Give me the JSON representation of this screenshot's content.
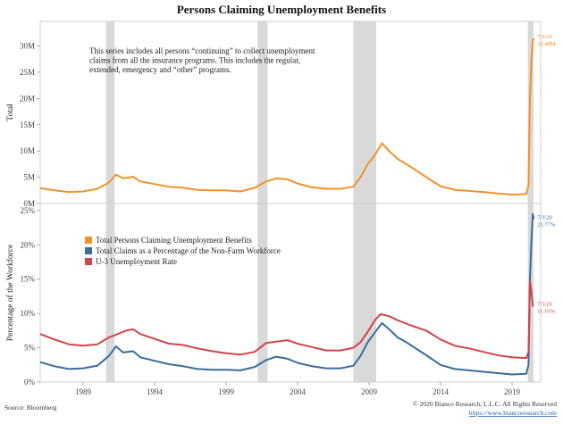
{
  "chart_data": {
    "type": "line",
    "title": "Persons Claiming Unemployment Benefits",
    "x_ticks": [
      "1989",
      "1994",
      "1999",
      "2004",
      "2009",
      "2014",
      "2019"
    ],
    "x_tick_years": [
      1989,
      1994,
      1999,
      2004,
      2009,
      2014,
      2019
    ],
    "xlim": [
      1986,
      2021
    ],
    "recessions": [
      [
        1990.6,
        1991.2
      ],
      [
        2001.2,
        2001.9
      ],
      [
        2007.9,
        2009.5
      ],
      [
        2020.1,
        2020.5
      ]
    ],
    "top_panel": {
      "ylabel": "Total",
      "y_ticks": [
        "0M",
        "5M",
        "10M",
        "15M",
        "20M",
        "25M",
        "30M"
      ],
      "y_tick_values": [
        0,
        5,
        10,
        15,
        20,
        25,
        30
      ],
      "ylim": [
        0,
        34
      ],
      "annotation": [
        "This series includes all persons “continuing” to collect unemployment",
        "claims from all the insurance programs.  This includes the regular,",
        "extended, emergency and “other” programs."
      ],
      "series": [
        {
          "name": "Total Persons Claiming Unemployment Benefits",
          "color": "#f0922a",
          "end_label": [
            "7/3/20",
            "31.48M"
          ],
          "points": [
            [
              1986.0,
              2.9
            ],
            [
              1987.0,
              2.5
            ],
            [
              1988.0,
              2.2
            ],
            [
              1989.0,
              2.3
            ],
            [
              1990.0,
              2.8
            ],
            [
              1990.8,
              4.0
            ],
            [
              1991.3,
              5.5
            ],
            [
              1991.8,
              4.8
            ],
            [
              1992.5,
              5.1
            ],
            [
              1993.0,
              4.2
            ],
            [
              1994.0,
              3.7
            ],
            [
              1995.0,
              3.2
            ],
            [
              1996.0,
              3.0
            ],
            [
              1997.0,
              2.6
            ],
            [
              1998.0,
              2.5
            ],
            [
              1999.0,
              2.5
            ],
            [
              2000.0,
              2.3
            ],
            [
              2001.0,
              3.0
            ],
            [
              2001.8,
              4.2
            ],
            [
              2002.5,
              4.8
            ],
            [
              2003.3,
              4.6
            ],
            [
              2004.0,
              3.8
            ],
            [
              2005.0,
              3.1
            ],
            [
              2006.0,
              2.8
            ],
            [
              2007.0,
              2.8
            ],
            [
              2007.9,
              3.2
            ],
            [
              2008.4,
              5.0
            ],
            [
              2008.9,
              7.5
            ],
            [
              2009.4,
              9.2
            ],
            [
              2009.9,
              11.5
            ],
            [
              2010.4,
              10.0
            ],
            [
              2011.0,
              8.5
            ],
            [
              2011.6,
              7.5
            ],
            [
              2012.2,
              6.5
            ],
            [
              2013.0,
              5.0
            ],
            [
              2014.0,
              3.3
            ],
            [
              2015.0,
              2.6
            ],
            [
              2016.0,
              2.4
            ],
            [
              2017.0,
              2.2
            ],
            [
              2018.0,
              1.9
            ],
            [
              2019.0,
              1.7
            ],
            [
              2020.0,
              1.8
            ],
            [
              2020.15,
              3.5
            ],
            [
              2020.25,
              20.0
            ],
            [
              2020.35,
              27.0
            ],
            [
              2020.45,
              31.0
            ],
            [
              2020.51,
              31.48
            ]
          ]
        }
      ]
    },
    "bottom_panel": {
      "ylabel": "Percentage of the Workforce",
      "y_ticks": [
        "0%",
        "5%",
        "10%",
        "15%",
        "20%",
        "25%"
      ],
      "y_tick_values": [
        0,
        5,
        10,
        15,
        20,
        25
      ],
      "ylim": [
        0,
        25.5
      ],
      "series": [
        {
          "name": "Total Persons Claiming Unemployment Benefits",
          "color": "#f0922a",
          "legend_only": true,
          "points": []
        },
        {
          "name": "Total Claims as a Percentage of the Non-Farm Workforce",
          "color": "#3a6d9b",
          "end_label": [
            "7/3/20",
            "23.77%"
          ],
          "points": [
            [
              1986.0,
              2.9
            ],
            [
              1987.0,
              2.3
            ],
            [
              1988.0,
              1.9
            ],
            [
              1989.0,
              2.0
            ],
            [
              1990.0,
              2.4
            ],
            [
              1990.8,
              3.8
            ],
            [
              1991.3,
              5.2
            ],
            [
              1991.8,
              4.3
            ],
            [
              1992.5,
              4.5
            ],
            [
              1993.0,
              3.6
            ],
            [
              1994.0,
              3.1
            ],
            [
              1995.0,
              2.6
            ],
            [
              1996.0,
              2.3
            ],
            [
              1997.0,
              1.9
            ],
            [
              1998.0,
              1.8
            ],
            [
              1999.0,
              1.8
            ],
            [
              2000.0,
              1.7
            ],
            [
              2001.0,
              2.2
            ],
            [
              2001.8,
              3.2
            ],
            [
              2002.5,
              3.7
            ],
            [
              2003.3,
              3.4
            ],
            [
              2004.0,
              2.8
            ],
            [
              2005.0,
              2.3
            ],
            [
              2006.0,
              2.0
            ],
            [
              2007.0,
              2.0
            ],
            [
              2007.9,
              2.4
            ],
            [
              2008.4,
              3.8
            ],
            [
              2008.9,
              5.8
            ],
            [
              2009.4,
              7.2
            ],
            [
              2009.9,
              8.6
            ],
            [
              2010.4,
              7.7
            ],
            [
              2011.0,
              6.5
            ],
            [
              2011.6,
              5.8
            ],
            [
              2012.2,
              5.0
            ],
            [
              2013.0,
              3.9
            ],
            [
              2014.0,
              2.5
            ],
            [
              2015.0,
              1.9
            ],
            [
              2016.0,
              1.7
            ],
            [
              2017.0,
              1.5
            ],
            [
              2018.0,
              1.3
            ],
            [
              2019.0,
              1.1
            ],
            [
              2020.0,
              1.2
            ],
            [
              2020.15,
              2.5
            ],
            [
              2020.25,
              15.0
            ],
            [
              2020.35,
              20.5
            ],
            [
              2020.45,
              24.5
            ],
            [
              2020.51,
              23.77
            ]
          ]
        },
        {
          "name": "U-3 Unemployment Rate",
          "color": "#d0454c",
          "end_label": [
            "7/3/20",
            "11.10%"
          ],
          "points": [
            [
              1986.0,
              7.0
            ],
            [
              1987.0,
              6.2
            ],
            [
              1988.0,
              5.5
            ],
            [
              1989.0,
              5.3
            ],
            [
              1990.0,
              5.5
            ],
            [
              1990.8,
              6.5
            ],
            [
              1991.3,
              6.9
            ],
            [
              1992.0,
              7.5
            ],
            [
              1992.5,
              7.7
            ],
            [
              1993.0,
              7.0
            ],
            [
              1994.0,
              6.3
            ],
            [
              1995.0,
              5.6
            ],
            [
              1996.0,
              5.4
            ],
            [
              1997.0,
              4.9
            ],
            [
              1998.0,
              4.5
            ],
            [
              1999.0,
              4.2
            ],
            [
              2000.0,
              4.0
            ],
            [
              2001.0,
              4.4
            ],
            [
              2001.8,
              5.7
            ],
            [
              2002.5,
              5.9
            ],
            [
              2003.3,
              6.1
            ],
            [
              2004.0,
              5.6
            ],
            [
              2005.0,
              5.1
            ],
            [
              2006.0,
              4.6
            ],
            [
              2007.0,
              4.6
            ],
            [
              2007.9,
              5.0
            ],
            [
              2008.4,
              5.8
            ],
            [
              2008.9,
              7.3
            ],
            [
              2009.4,
              9.0
            ],
            [
              2009.8,
              9.9
            ],
            [
              2010.4,
              9.6
            ],
            [
              2011.0,
              9.0
            ],
            [
              2012.0,
              8.2
            ],
            [
              2013.0,
              7.5
            ],
            [
              2014.0,
              6.2
            ],
            [
              2015.0,
              5.3
            ],
            [
              2016.0,
              4.9
            ],
            [
              2017.0,
              4.4
            ],
            [
              2018.0,
              3.9
            ],
            [
              2019.0,
              3.6
            ],
            [
              2020.0,
              3.5
            ],
            [
              2020.15,
              4.4
            ],
            [
              2020.25,
              14.7
            ],
            [
              2020.35,
              13.3
            ],
            [
              2020.45,
              11.1
            ],
            [
              2020.51,
              11.1
            ]
          ]
        }
      ]
    }
  },
  "footer": {
    "source": "Source: Bloomberg",
    "copyright": "© 2020 Bianco Research, L.L.C. All Rights Reserved",
    "url": "https://www.biancoresearch.com"
  }
}
